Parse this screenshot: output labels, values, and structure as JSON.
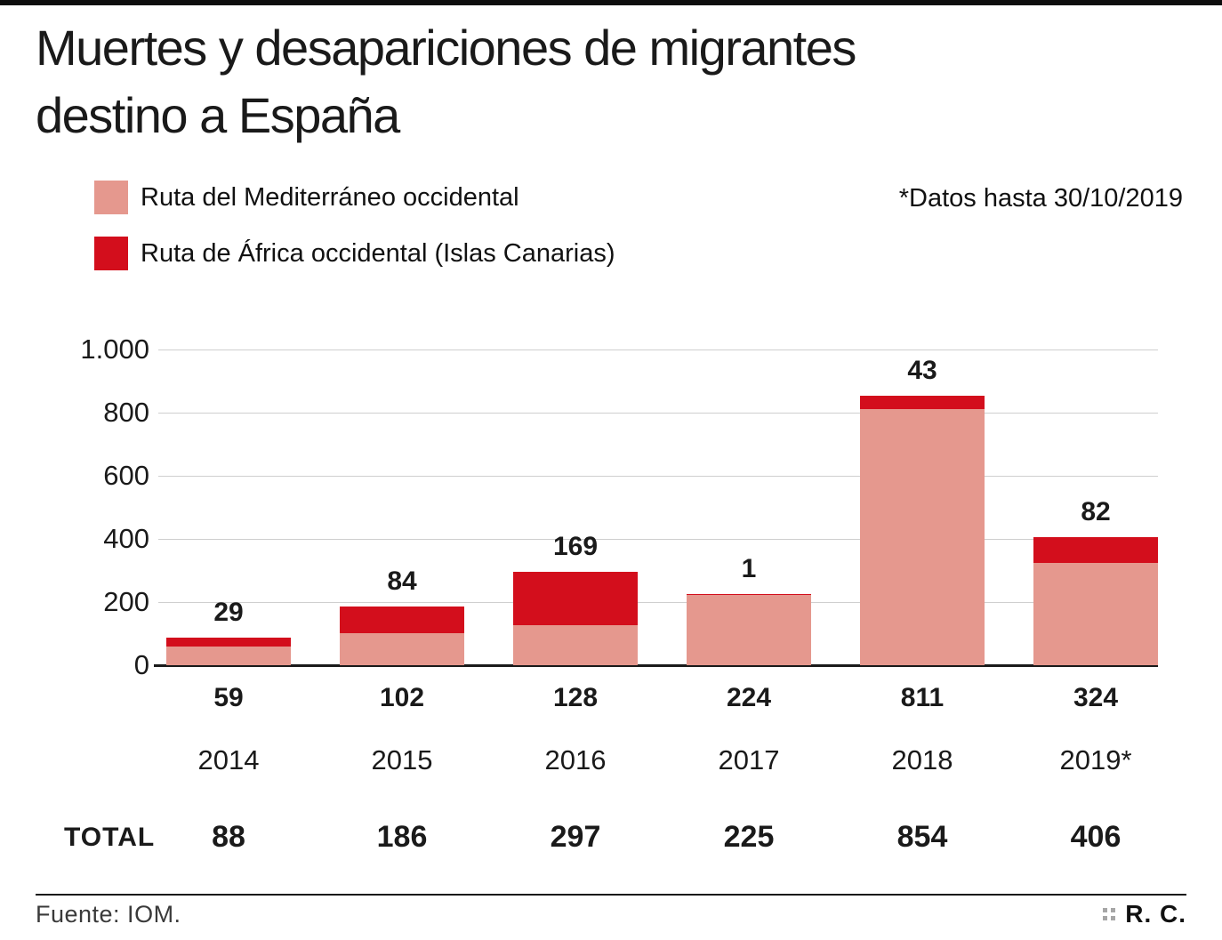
{
  "header": {
    "title_line1": "Muertes y desapariciones de migrantes",
    "title_line2": "destino a España"
  },
  "legend": [
    {
      "label": "Ruta del Mediterráneo occidental",
      "color": "#e5988e"
    },
    {
      "label": "Ruta de África occidental (Islas Canarias)",
      "color": "#d30e1c"
    }
  ],
  "note": "*Datos hasta 30/10/2019",
  "chart_data": {
    "type": "bar",
    "stacked": true,
    "categories": [
      "2014",
      "2015",
      "2016",
      "2017",
      "2018",
      "2019*"
    ],
    "series": [
      {
        "name": "Ruta del Mediterráneo occidental",
        "color": "#e5988e",
        "values": [
          59,
          102,
          128,
          224,
          811,
          324
        ]
      },
      {
        "name": "Ruta de África occidental (Islas Canarias)",
        "color": "#d30e1c",
        "values": [
          29,
          84,
          169,
          1,
          43,
          82
        ]
      }
    ],
    "totals": [
      88,
      186,
      297,
      225,
      854,
      406
    ],
    "title": "Muertes y desapariciones de migrantes destino a España",
    "xlabel": "",
    "ylabel": "",
    "ylim": [
      0,
      1000
    ],
    "yticks": [
      0,
      200,
      400,
      600,
      800,
      1000
    ],
    "ytick_labels": [
      "0",
      "200",
      "400",
      "600",
      "800",
      "1.000"
    ],
    "grid": true,
    "grid_color": "#cfcfcf",
    "legend_position": "top-left"
  },
  "table": {
    "total_label": "TOTAL"
  },
  "footer": {
    "source": "Fuente: IOM.",
    "credit": "R. C."
  }
}
